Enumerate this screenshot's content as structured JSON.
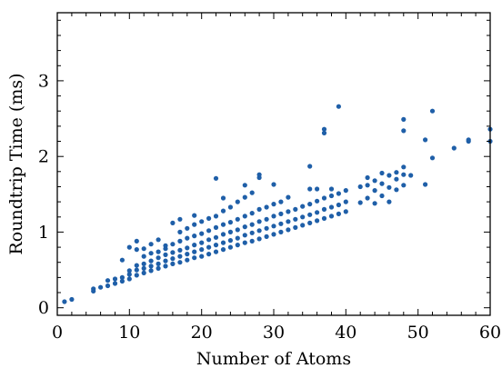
{
  "chart_data": {
    "type": "scatter",
    "title": "",
    "xlabel": "Number of Atoms",
    "ylabel": "Roundtrip Time (ms)",
    "xlim": [
      0,
      60
    ],
    "ylim": [
      -0.1,
      3.9
    ],
    "grid": false,
    "legend": "none",
    "marker_color": "#1f5fa8",
    "x_ticks": [
      0,
      10,
      20,
      30,
      40,
      50,
      60
    ],
    "y_ticks": [
      0,
      1,
      2,
      3
    ],
    "series": [
      {
        "points": [
          [
            1,
            0.08
          ],
          [
            2,
            0.11
          ],
          [
            5,
            0.22
          ],
          [
            5,
            0.25
          ],
          [
            6,
            0.27
          ],
          [
            7,
            0.29
          ],
          [
            7,
            0.36
          ],
          [
            8,
            0.32
          ],
          [
            8,
            0.38
          ],
          [
            9,
            0.35
          ],
          [
            9,
            0.4
          ],
          [
            9,
            0.63
          ],
          [
            10,
            0.38
          ],
          [
            10,
            0.44
          ],
          [
            10,
            0.49
          ],
          [
            10,
            0.8
          ],
          [
            11,
            0.43
          ],
          [
            11,
            0.5
          ],
          [
            11,
            0.56
          ],
          [
            11,
            0.77
          ],
          [
            11,
            0.88
          ],
          [
            12,
            0.46
          ],
          [
            12,
            0.52
          ],
          [
            12,
            0.58
          ],
          [
            12,
            0.68
          ],
          [
            12,
            0.78
          ],
          [
            13,
            0.49
          ],
          [
            13,
            0.55
          ],
          [
            13,
            0.62
          ],
          [
            13,
            0.72
          ],
          [
            13,
            0.84
          ],
          [
            14,
            0.52
          ],
          [
            14,
            0.58
          ],
          [
            14,
            0.66
          ],
          [
            14,
            0.74
          ],
          [
            14,
            0.9
          ],
          [
            15,
            0.55
          ],
          [
            15,
            0.62
          ],
          [
            15,
            0.7
          ],
          [
            15,
            0.78
          ],
          [
            15,
            0.82
          ],
          [
            16,
            0.58
          ],
          [
            16,
            0.65
          ],
          [
            16,
            0.73
          ],
          [
            16,
            0.84
          ],
          [
            16,
            1.12
          ],
          [
            17,
            0.6
          ],
          [
            17,
            0.68
          ],
          [
            17,
            0.76
          ],
          [
            17,
            0.88
          ],
          [
            17,
            1.0
          ],
          [
            17,
            1.17
          ],
          [
            18,
            0.63
          ],
          [
            18,
            0.71
          ],
          [
            18,
            0.79
          ],
          [
            18,
            0.92
          ],
          [
            18,
            1.05
          ],
          [
            19,
            0.66
          ],
          [
            19,
            0.74
          ],
          [
            19,
            0.83
          ],
          [
            19,
            0.95
          ],
          [
            19,
            1.1
          ],
          [
            19,
            1.22
          ],
          [
            20,
            0.68
          ],
          [
            20,
            0.77
          ],
          [
            20,
            0.86
          ],
          [
            20,
            0.98
          ],
          [
            20,
            1.14
          ],
          [
            21,
            0.71
          ],
          [
            21,
            0.8
          ],
          [
            21,
            0.9
          ],
          [
            21,
            1.02
          ],
          [
            21,
            1.18
          ],
          [
            22,
            0.74
          ],
          [
            22,
            0.83
          ],
          [
            22,
            0.93
          ],
          [
            22,
            1.06
          ],
          [
            22,
            1.21
          ],
          [
            22,
            1.71
          ],
          [
            23,
            0.77
          ],
          [
            23,
            0.86
          ],
          [
            23,
            0.97
          ],
          [
            23,
            1.1
          ],
          [
            23,
            1.28
          ],
          [
            23,
            1.45
          ],
          [
            24,
            0.8
          ],
          [
            24,
            0.89
          ],
          [
            24,
            1.0
          ],
          [
            24,
            1.13
          ],
          [
            24,
            1.33
          ],
          [
            25,
            0.83
          ],
          [
            25,
            0.92
          ],
          [
            25,
            1.03
          ],
          [
            25,
            1.17
          ],
          [
            25,
            1.4
          ],
          [
            26,
            0.86
          ],
          [
            26,
            0.96
          ],
          [
            26,
            1.07
          ],
          [
            26,
            1.21
          ],
          [
            26,
            1.46
          ],
          [
            26,
            1.62
          ],
          [
            27,
            0.88
          ],
          [
            27,
            0.99
          ],
          [
            27,
            1.1
          ],
          [
            27,
            1.25
          ],
          [
            27,
            1.52
          ],
          [
            28,
            0.91
          ],
          [
            28,
            1.02
          ],
          [
            28,
            1.14
          ],
          [
            28,
            1.3
          ],
          [
            28,
            1.72
          ],
          [
            28,
            1.76
          ],
          [
            29,
            0.94
          ],
          [
            29,
            1.05
          ],
          [
            29,
            1.17
          ],
          [
            29,
            1.33
          ],
          [
            30,
            0.97
          ],
          [
            30,
            1.08
          ],
          [
            30,
            1.21
          ],
          [
            30,
            1.37
          ],
          [
            30,
            1.63
          ],
          [
            31,
            1.0
          ],
          [
            31,
            1.11
          ],
          [
            31,
            1.24
          ],
          [
            31,
            1.4
          ],
          [
            32,
            1.03
          ],
          [
            32,
            1.14
          ],
          [
            32,
            1.27
          ],
          [
            32,
            1.46
          ],
          [
            33,
            1.06
          ],
          [
            33,
            1.17
          ],
          [
            33,
            1.3
          ],
          [
            34,
            1.09
          ],
          [
            34,
            1.2
          ],
          [
            34,
            1.34
          ],
          [
            35,
            1.12
          ],
          [
            35,
            1.23
          ],
          [
            35,
            1.37
          ],
          [
            35,
            1.57
          ],
          [
            35,
            1.87
          ],
          [
            36,
            1.15
          ],
          [
            36,
            1.26
          ],
          [
            36,
            1.41
          ],
          [
            36,
            1.57
          ],
          [
            37,
            1.18
          ],
          [
            37,
            1.3
          ],
          [
            37,
            1.45
          ],
          [
            37,
            2.31
          ],
          [
            37,
            2.36
          ],
          [
            38,
            1.21
          ],
          [
            38,
            1.33
          ],
          [
            38,
            1.48
          ],
          [
            38,
            1.57
          ],
          [
            39,
            1.24
          ],
          [
            39,
            1.36
          ],
          [
            39,
            1.51
          ],
          [
            39,
            2.66
          ],
          [
            40,
            1.27
          ],
          [
            40,
            1.4
          ],
          [
            40,
            1.55
          ],
          [
            42,
            1.39
          ],
          [
            42,
            1.6
          ],
          [
            43,
            1.45
          ],
          [
            43,
            1.62
          ],
          [
            43,
            1.72
          ],
          [
            44,
            1.38
          ],
          [
            44,
            1.55
          ],
          [
            44,
            1.68
          ],
          [
            45,
            1.48
          ],
          [
            45,
            1.64
          ],
          [
            45,
            1.78
          ],
          [
            46,
            1.4
          ],
          [
            46,
            1.59
          ],
          [
            46,
            1.75
          ],
          [
            47,
            1.56
          ],
          [
            47,
            1.7
          ],
          [
            47,
            1.79
          ],
          [
            48,
            1.62
          ],
          [
            48,
            1.76
          ],
          [
            48,
            1.86
          ],
          [
            48,
            2.34
          ],
          [
            48,
            2.49
          ],
          [
            49,
            1.75
          ],
          [
            51,
            1.63
          ],
          [
            51,
            2.22
          ],
          [
            52,
            1.98
          ],
          [
            52,
            2.6
          ],
          [
            55,
            2.11
          ],
          [
            57,
            2.2
          ],
          [
            57,
            2.22
          ],
          [
            60,
            2.2
          ],
          [
            60,
            2.36
          ]
        ]
      }
    ]
  }
}
